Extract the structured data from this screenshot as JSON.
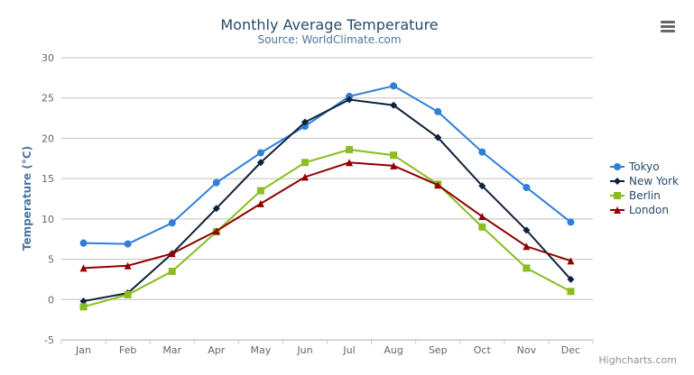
{
  "chart_data": {
    "type": "line",
    "title": "Monthly Average Temperature",
    "subtitle": "Source: WorldClimate.com",
    "xlabel": "",
    "ylabel": "Temperature (°C)",
    "categories": [
      "Jan",
      "Feb",
      "Mar",
      "Apr",
      "May",
      "Jun",
      "Jul",
      "Aug",
      "Sep",
      "Oct",
      "Nov",
      "Dec"
    ],
    "ylim": [
      -5,
      30
    ],
    "yticks": [
      -5,
      0,
      5,
      10,
      15,
      20,
      25,
      30
    ],
    "grid": true,
    "legend_placement": "right",
    "series": [
      {
        "name": "Tokyo",
        "color": "#2f7ed8",
        "marker": "circle",
        "values": [
          7.0,
          6.9,
          9.5,
          14.5,
          18.2,
          21.5,
          25.2,
          26.5,
          23.3,
          18.3,
          13.9,
          9.6
        ]
      },
      {
        "name": "New York",
        "color": "#0d233a",
        "marker": "diamond",
        "values": [
          -0.2,
          0.8,
          5.7,
          11.3,
          17.0,
          22.0,
          24.8,
          24.1,
          20.1,
          14.1,
          8.6,
          2.5
        ]
      },
      {
        "name": "Berlin",
        "color": "#8bbc21",
        "marker": "square",
        "values": [
          -0.9,
          0.6,
          3.5,
          8.4,
          13.5,
          17.0,
          18.6,
          17.9,
          14.3,
          9.0,
          3.9,
          1.0
        ]
      },
      {
        "name": "London",
        "color": "#910000",
        "marker": "triangle",
        "values": [
          3.9,
          4.2,
          5.7,
          8.5,
          11.9,
          15.2,
          17.0,
          16.6,
          14.2,
          10.3,
          6.6,
          4.8
        ]
      }
    ]
  },
  "credits": "Highcharts.com",
  "menu_icon": "hamburger-menu-icon",
  "colors": {
    "title": "#274b6d",
    "axis_text": "#666666",
    "grid": "#c0c0c0",
    "ylabel": "#4d759e"
  }
}
